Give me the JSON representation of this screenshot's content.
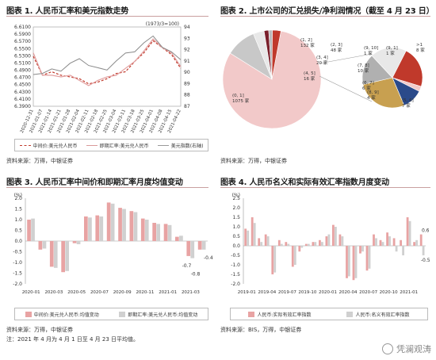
{
  "charts": [
    {
      "title": "图表 1. 人民币汇率和美元指数走势",
      "source": "资料来源：万得，中银证券",
      "legend": [
        "中间价:美元兑人民币",
        "即期汇率:美元兑人民币",
        "美元指数(右轴)"
      ],
      "annotation": "(1973/3=100)"
    },
    {
      "title": "图表 2. 上市公司的汇兑损失/净利润情况（截至 4 月 23 日）",
      "source": "资料来源：万得，中银证券",
      "labels": [
        "(0, 1]\n1075 家",
        "(2, 3]\n48 家",
        "(1, 2]\n132 家",
        "(4, 5]\n16 家",
        "(3, 4]\n20 家",
        "(6, 7]\n6 家",
        "(8, 9]\n4 家",
        "(7, 8]\n10 家",
        "(9, 10]\n1 家",
        "(5, 6]\n7 家",
        ">1\n8 家",
        "(9, 1]\n1 家"
      ]
    },
    {
      "title": "图表 3. 人民币汇率中间价和即期汇率月度均值变动",
      "source": "资料来源：万得，中银证券",
      "legend": [
        "中间价:美元兑人民币:均值变动",
        "即期汇率:美元兑人民币:均值变动"
      ],
      "unit": "(%)",
      "note": "注：2021 年 4 月为 4 月 1 日至 4 月 23 日平均值。"
    },
    {
      "title": "图表 4. 人民币名义和实际有效汇率指数月度变动",
      "source": "资料来源：BIS，万得，中银证券",
      "legend": [
        "人民币:实际有效汇率指数",
        "人民币:名义有效汇率指数"
      ],
      "unit": "(%)"
    }
  ],
  "watermark": "凭澜观涛",
  "chart_data": [
    {
      "type": "line",
      "title": "图表 1. 人民币汇率和美元指数走势",
      "x": [
        "2020-12-31",
        "2021-01-07",
        "2021-01-14",
        "2021-01-21",
        "2021-01-28",
        "2021-02-04",
        "2021-02-11",
        "2021-02-18",
        "2021-02-25",
        "2021-03-04",
        "2021-03-11",
        "2021-03-18",
        "2021-03-25",
        "2021-04-01",
        "2021-04-08",
        "2021-04-15",
        "2021-04-22"
      ],
      "ylim": [
        6.38,
        6.61
      ],
      "y2lim": [
        87,
        94
      ],
      "yticks": [
        "6.6100",
        "6.5900",
        "6.5700",
        "6.5500",
        "6.5300",
        "6.5100",
        "6.4900",
        "6.4700",
        "6.4500",
        "6.4300",
        "6.4100",
        "6.3900"
      ],
      "y2ticks": [
        "94",
        "93",
        "92",
        "91",
        "90",
        "89",
        "88",
        "87"
      ],
      "series": [
        {
          "name": "中间价:美元兑人民币",
          "axis": "left",
          "values": [
            6.525,
            6.47,
            6.48,
            6.47,
            6.465,
            6.46,
            6.445,
            6.45,
            6.46,
            6.475,
            6.48,
            6.51,
            6.535,
            6.57,
            6.55,
            6.53,
            6.49
          ]
        },
        {
          "name": "即期汇率:美元兑人民币",
          "axis": "left",
          "values": [
            6.535,
            6.47,
            6.47,
            6.465,
            6.47,
            6.455,
            6.44,
            6.455,
            6.465,
            6.47,
            6.49,
            6.51,
            6.54,
            6.575,
            6.55,
            6.535,
            6.495
          ]
        },
        {
          "name": "美元指数(右轴)",
          "axis": "right",
          "values": [
            89.8,
            89.9,
            90.3,
            90.1,
            90.8,
            91.2,
            90.6,
            90.4,
            90.2,
            91.0,
            91.7,
            91.8,
            92.6,
            93.2,
            92.2,
            91.8,
            91.1
          ]
        }
      ]
    },
    {
      "type": "pie",
      "title": "图表 2. 上市公司的汇兑损失/净利润情况（截至 4 月 23 日）",
      "main_pie": [
        {
          "label": "(0, 1]",
          "value": 1075
        },
        {
          "label": "(1, 2]",
          "value": 132
        },
        {
          "label": "(2, 3]",
          "value": 48
        },
        {
          "label": "(3, 4]",
          "value": 20
        },
        {
          "label": "(4, 5]",
          "value": 16
        },
        {
          "label": "other",
          "value": 37
        }
      ],
      "sub_pie": [
        {
          "label": ">1",
          "value": 8
        },
        {
          "label": "(9, 1]",
          "value": 1
        },
        {
          "label": "(8, 9]",
          "value": 4
        },
        {
          "label": "(7, 8]",
          "value": 10
        },
        {
          "label": "(6, 7]",
          "value": 6
        },
        {
          "label": "(5, 6]",
          "value": 7
        }
      ]
    },
    {
      "type": "bar",
      "title": "图表 3. 人民币汇率中间价和即期汇率月度均值变动",
      "categories": [
        "2020-01",
        "2020-02",
        "2020-03",
        "2020-04",
        "2020-05",
        "2020-06",
        "2020-07",
        "2020-08",
        "2020-09",
        "2020-10",
        "2020-11",
        "2020-12",
        "2021-01",
        "2021-02",
        "2021-03",
        "2021-04"
      ],
      "xticks": [
        "2020-01",
        "2020-03",
        "2020-05",
        "2020-07",
        "2020-09",
        "2020-11",
        "2021-01",
        "2021-03"
      ],
      "ylim": [
        -2.0,
        2.0
      ],
      "yticks": [
        "2.0",
        "1.5",
        "1.0",
        "0.5",
        "0.0",
        "-0.5",
        "-1.0",
        "-1.5",
        "-2.0"
      ],
      "series": [
        {
          "name": "中间价:美元兑人民币:均值变动",
          "values": [
            1.0,
            -0.4,
            -1.2,
            -1.45,
            -0.1,
            1.15,
            1.2,
            1.8,
            1.55,
            1.4,
            1.05,
            0.85,
            0.8,
            0.2,
            -0.7,
            -0.4
          ]
        },
        {
          "name": "即期汇率:美元兑人民币:均值变动",
          "values": [
            1.05,
            -0.35,
            -1.25,
            -1.4,
            -0.15,
            1.1,
            1.15,
            1.75,
            1.5,
            1.35,
            1.0,
            0.8,
            0.75,
            0.25,
            -0.8,
            -0.4
          ]
        }
      ],
      "data_labels": [
        "-0.7",
        "-0.8",
        -0.4
      ]
    },
    {
      "type": "bar",
      "title": "图表 4. 人民币名义和实际有效汇率指数月度变动",
      "categories": [
        "2019-01",
        "2019-02",
        "2019-03",
        "2019-04",
        "2019-05",
        "2019-06",
        "2019-07",
        "2019-08",
        "2019-09",
        "2019-10",
        "2019-11",
        "2019-12",
        "2020-01",
        "2020-02",
        "2020-03",
        "2020-04",
        "2020-05",
        "2020-06",
        "2020-07",
        "2020-08",
        "2020-09",
        "2020-10",
        "2020-11",
        "2020-12",
        "2021-01",
        "2021-02",
        "2021-03"
      ],
      "xticks": [
        "2019-01",
        "2019-04",
        "2019-07",
        "2019-10",
        "2020-01",
        "2020-04",
        "2020-07",
        "2020-10",
        "2021-01"
      ],
      "ylim": [
        -2.0,
        2.5
      ],
      "yticks": [
        "2.5",
        "2.0",
        "1.5",
        "1.0",
        "0.5",
        "0.0",
        "-0.5",
        "-1.0",
        "-1.5",
        "-2.0"
      ],
      "series": [
        {
          "name": "人民币:实际有效汇率指数",
          "values": [
            0.9,
            1.5,
            0.4,
            0.6,
            -1.5,
            0.3,
            0.2,
            -1.1,
            -0.3,
            0.1,
            0.2,
            0.3,
            0.5,
            1.1,
            0.6,
            -1.7,
            -1.8,
            -0.4,
            -1.3,
            0.6,
            0.3,
            0.7,
            0.4,
            0.3,
            1.5,
            0.2,
            0.6
          ]
        },
        {
          "name": "人民币:名义有效汇率指数",
          "values": [
            0.8,
            1.2,
            0.2,
            0.5,
            -1.4,
            0.1,
            0.1,
            -1.0,
            -0.1,
            0.1,
            0.2,
            0.2,
            0.6,
            1.0,
            0.5,
            -1.6,
            -1.7,
            -0.3,
            -1.2,
            0.4,
            0.2,
            0.5,
            -0.3,
            -0.5,
            1.3,
            0.3,
            -0.5
          ]
        }
      ],
      "data_labels": [
        "0.6",
        "-0.5"
      ]
    }
  ]
}
